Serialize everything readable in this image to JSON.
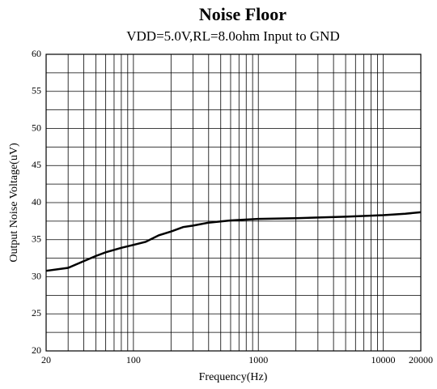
{
  "chart_data": {
    "type": "line",
    "title": "Noise Floor",
    "subtitle": "VDD=5.0V,RL=8.0ohm Input to GND",
    "x_label": "Frequency(Hz)",
    "y_label": "Output Noise Voltage(uV)",
    "x": [
      20,
      30,
      40,
      50,
      60,
      80,
      100,
      125,
      160,
      200,
      250,
      300,
      400,
      600,
      1000,
      2000,
      5000,
      10000,
      15000,
      20000
    ],
    "values": [
      30.8,
      31.2,
      32.1,
      32.8,
      33.3,
      33.9,
      34.3,
      34.7,
      35.6,
      36.1,
      36.7,
      36.9,
      37.3,
      37.6,
      37.8,
      37.9,
      38.1,
      38.3,
      38.5,
      38.7
    ],
    "color": "#000000",
    "xscale": "log",
    "xlim": [
      20,
      20000
    ],
    "xticks": [
      20,
      100,
      1000,
      10000,
      20000
    ],
    "x_minor_ticks": [
      30,
      40,
      50,
      60,
      70,
      80,
      90,
      200,
      300,
      400,
      500,
      600,
      700,
      800,
      900,
      2000,
      3000,
      4000,
      5000,
      6000,
      7000,
      8000,
      9000
    ],
    "ylim": [
      20,
      60
    ],
    "yticks": [
      20,
      25,
      30,
      35,
      40,
      45,
      50,
      55,
      60
    ],
    "y_minor_ticks": [
      22.5,
      27.5,
      32.5,
      37.5,
      42.5,
      47.5,
      52.5,
      57.5
    ],
    "grid": true
  }
}
